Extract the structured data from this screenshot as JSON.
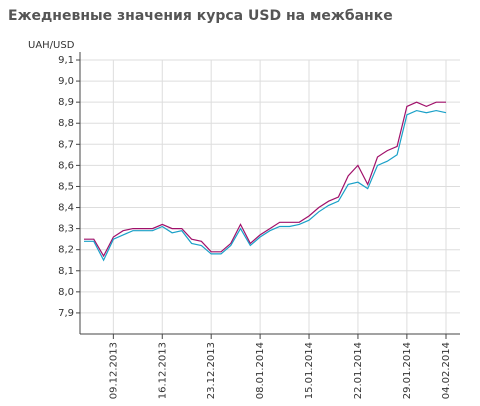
{
  "title": "Ежедневные значения курса USD на межбанке",
  "chart_data": {
    "type": "line",
    "title": "Ежедневные значения курса USD на межбанке",
    "ylabel": "UAH/USD",
    "xlabel": "",
    "ylim": [
      7.8,
      9.1
    ],
    "ytick_labels": [
      "7,9",
      "8,0",
      "8,1",
      "8,2",
      "8,3",
      "8,4",
      "8,5",
      "8,6",
      "8,7",
      "8,8",
      "8,9",
      "9,0",
      "9,1"
    ],
    "ytick_values": [
      7.9,
      8.0,
      8.1,
      8.2,
      8.3,
      8.4,
      8.5,
      8.6,
      8.7,
      8.8,
      8.9,
      9.0,
      9.1
    ],
    "xtick_labels": [
      "09.12.2013",
      "16.12.2013",
      "23.12.2013",
      "08.01.2014",
      "15.01.2014",
      "22.01.2014",
      "29.01.2014",
      "04.02.2014"
    ],
    "xtick_index": [
      3,
      8,
      13,
      18,
      23,
      28,
      33,
      37
    ],
    "grid": true,
    "legend": "none",
    "colors": {
      "series1": "#a0106a",
      "series2": "#1aa0c8",
      "grid": "#dddddd",
      "axis": "#444444",
      "title": "#555555"
    },
    "series": [
      {
        "values": [
          8.25,
          8.25,
          8.17,
          8.26,
          8.29,
          8.3,
          8.3,
          8.3,
          8.32,
          8.3,
          8.3,
          8.25,
          8.24,
          8.19,
          8.19,
          8.23,
          8.32,
          8.23,
          8.27,
          8.3,
          8.33,
          8.33,
          8.33,
          8.36,
          8.4,
          8.43,
          8.45,
          8.55,
          8.6,
          8.51,
          8.64,
          8.67,
          8.69,
          8.88,
          8.9,
          8.88,
          8.9,
          8.9
        ]
      },
      {
        "values": [
          8.24,
          8.24,
          8.15,
          8.25,
          8.27,
          8.29,
          8.29,
          8.29,
          8.31,
          8.28,
          8.29,
          8.23,
          8.22,
          8.18,
          8.18,
          8.22,
          8.3,
          8.22,
          8.26,
          8.29,
          8.31,
          8.31,
          8.32,
          8.34,
          8.38,
          8.41,
          8.43,
          8.51,
          8.52,
          8.49,
          8.6,
          8.62,
          8.65,
          8.84,
          8.86,
          8.85,
          8.86,
          8.85
        ]
      }
    ]
  }
}
